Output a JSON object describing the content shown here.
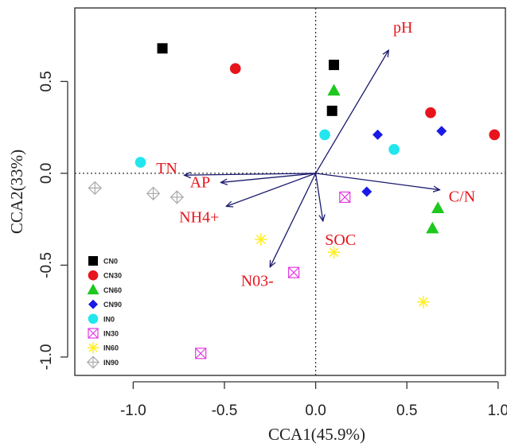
{
  "chart_data": {
    "type": "scatter",
    "xlabel": "CCA1(45.9%)",
    "ylabel": "CCA2(33%)",
    "xlim": [
      -1.32,
      1.04
    ],
    "ylim": [
      -1.1,
      0.9
    ],
    "x_ticks": [
      -1.0,
      -0.5,
      0.0,
      0.5,
      1.0
    ],
    "x_tick_labels": [
      "-1.0",
      "-0.5",
      "0.0",
      "0.5",
      "1.0"
    ],
    "y_ticks": [
      -1.0,
      -0.5,
      0.0,
      0.5
    ],
    "y_tick_labels": [
      "-1.0",
      "-0.5",
      "0.0",
      "0.5"
    ],
    "grid": false,
    "reference_lines": {
      "x": 0,
      "y": 0,
      "style": "dotted"
    },
    "legend_position": "bottom-left",
    "series": [
      {
        "name": "CN0",
        "marker": "square",
        "color": "#000000",
        "points": [
          [
            -0.84,
            0.68
          ],
          [
            0.1,
            0.59
          ],
          [
            0.09,
            0.34
          ]
        ]
      },
      {
        "name": "CN30",
        "marker": "circle",
        "color": "#e8141b",
        "points": [
          [
            -0.44,
            0.57
          ],
          [
            0.63,
            0.33
          ],
          [
            0.98,
            0.21
          ]
        ]
      },
      {
        "name": "CN60",
        "marker": "triangle",
        "color": "#1ec81e",
        "points": [
          [
            0.1,
            0.45
          ],
          [
            0.67,
            -0.19
          ],
          [
            0.64,
            -0.3
          ]
        ]
      },
      {
        "name": "CN90",
        "marker": "diamond",
        "color": "#1a1ae6",
        "points": [
          [
            0.34,
            0.21
          ],
          [
            0.69,
            0.23
          ],
          [
            0.28,
            -0.1
          ]
        ]
      },
      {
        "name": "IN0",
        "marker": "circle",
        "color": "#22e6ee",
        "points": [
          [
            -0.96,
            0.06
          ],
          [
            0.05,
            0.21
          ],
          [
            0.43,
            0.13
          ]
        ]
      },
      {
        "name": "IN30",
        "marker": "boxed-x",
        "color": "#e23be2",
        "points": [
          [
            0.16,
            -0.13
          ],
          [
            -0.12,
            -0.54
          ],
          [
            -0.63,
            -0.98
          ]
        ]
      },
      {
        "name": "IN60",
        "marker": "star",
        "color": "#ffee22",
        "points": [
          [
            -0.3,
            -0.36
          ],
          [
            0.1,
            -0.43
          ],
          [
            0.59,
            -0.7
          ]
        ]
      },
      {
        "name": "IN90",
        "marker": "boxed-plus",
        "color": "#aaaaaa",
        "points": [
          [
            -1.21,
            -0.08
          ],
          [
            -0.89,
            -0.11
          ],
          [
            -0.76,
            -0.13
          ]
        ]
      }
    ],
    "vectors": [
      {
        "label": "pH",
        "x": 0.4,
        "y": 0.67
      },
      {
        "label": "TN",
        "x": -0.72,
        "y": -0.01
      },
      {
        "label": "AP",
        "x": -0.52,
        "y": -0.05
      },
      {
        "label": "NH4+",
        "x": -0.49,
        "y": -0.18
      },
      {
        "label": "C/N",
        "x": 0.68,
        "y": -0.09
      },
      {
        "label": "SOC",
        "x": 0.04,
        "y": -0.26
      },
      {
        "label": "N03-",
        "x": -0.25,
        "y": -0.51
      }
    ]
  }
}
